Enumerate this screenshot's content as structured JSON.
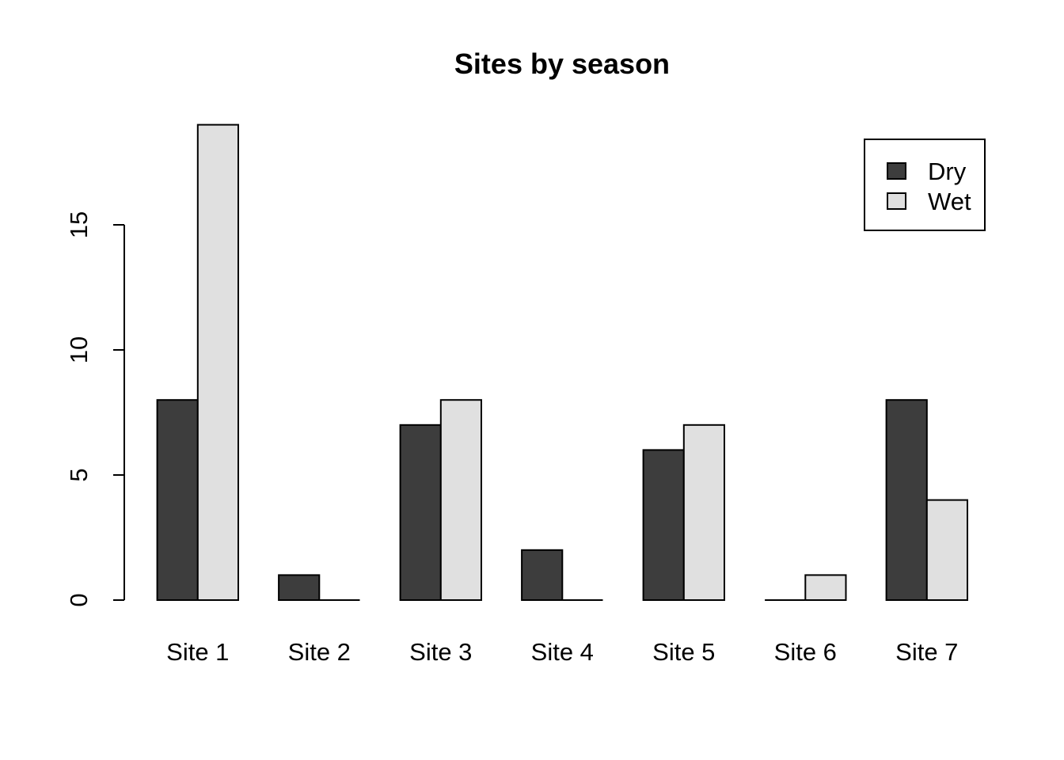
{
  "chart_data": {
    "type": "bar",
    "title": "Sites by season",
    "xlabel": "",
    "ylabel": "",
    "categories": [
      "Site 1",
      "Site 2",
      "Site 3",
      "Site 4",
      "Site 5",
      "Site 6",
      "Site 7"
    ],
    "series": [
      {
        "name": "Dry",
        "color": "#3d3d3d",
        "values": [
          8,
          1,
          7,
          2,
          6,
          0,
          8
        ]
      },
      {
        "name": "Wet",
        "color": "#e0e0e0",
        "values": [
          19,
          0,
          8,
          0,
          7,
          1,
          4
        ]
      }
    ],
    "yticks": [
      "0",
      "5",
      "10",
      "15"
    ],
    "ylim": [
      0,
      19
    ],
    "grid": false,
    "legend_position": "top-right"
  }
}
